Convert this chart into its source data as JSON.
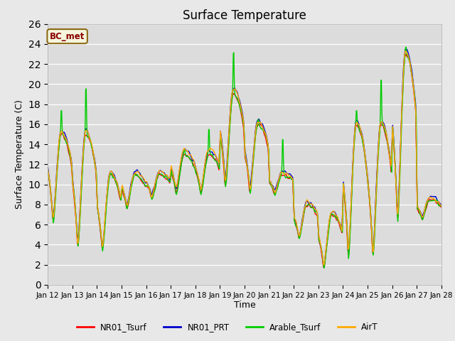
{
  "title": "Surface Temperature",
  "xlabel": "Time",
  "ylabel": "Surface Temperature (C)",
  "ylim": [
    0,
    26
  ],
  "yticks": [
    0,
    2,
    4,
    6,
    8,
    10,
    12,
    14,
    16,
    18,
    20,
    22,
    24,
    26
  ],
  "bg_color": "#e8e8e8",
  "plot_bg": "#dcdcdc",
  "annotation_text": "BC_met",
  "annotation_fg": "#8b0000",
  "annotation_bg": "#f5f5dc",
  "annotation_border": "#8b6914",
  "series_colors": [
    "#ff0000",
    "#0000cc",
    "#00cc00",
    "#ffaa00"
  ],
  "series_names": [
    "NR01_Tsurf",
    "NR01_PRT",
    "Arable_Tsurf",
    "AirT"
  ],
  "lw": 1.0,
  "n_days": 16,
  "pts_per_day": 48
}
